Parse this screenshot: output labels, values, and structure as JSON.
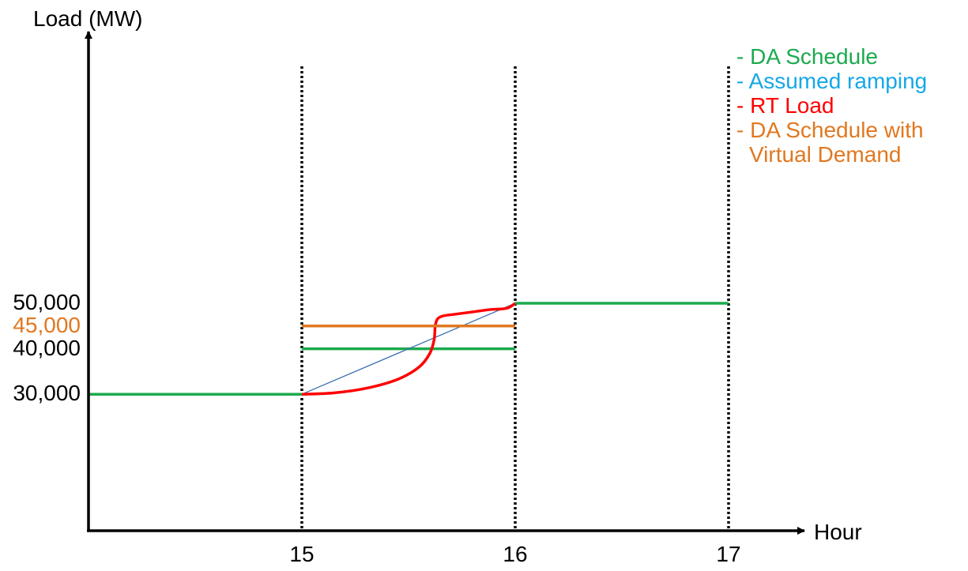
{
  "chart_data": {
    "type": "line",
    "title": "",
    "ylabel": "Load (MW)",
    "xlabel": "Hour",
    "xlim": [
      14,
      17.8
    ],
    "ylim": [
      0,
      64000
    ],
    "x_ticks": [
      {
        "value": 15,
        "label": "15"
      },
      {
        "value": 16,
        "label": "16"
      },
      {
        "value": 17,
        "label": "17"
      }
    ],
    "y_ticks": [
      {
        "value": 50000,
        "label": "50,000",
        "color": "#000000"
      },
      {
        "value": 45000,
        "label": "45,000",
        "color": "#E07820"
      },
      {
        "value": 40000,
        "label": "40,000",
        "color": "#000000"
      },
      {
        "value": 30000,
        "label": "30,000",
        "color": "#000000"
      }
    ],
    "vertical_lines": [
      15,
      16,
      17
    ],
    "series": [
      {
        "name": "DA Schedule",
        "color": "#1BAA4E",
        "segments": [
          [
            [
              14,
              30000
            ],
            [
              15,
              30000
            ]
          ],
          [
            [
              15,
              40000
            ],
            [
              16,
              40000
            ]
          ],
          [
            [
              16,
              50000
            ],
            [
              17,
              50000
            ]
          ]
        ]
      },
      {
        "name": "Assumed ramping",
        "color": "#3A6FB0",
        "segments": [
          [
            [
              15,
              30000
            ],
            [
              16,
              50000
            ]
          ]
        ]
      },
      {
        "name": "RT Load",
        "color": "#FF0000",
        "segments": [
          [
            [
              15.0,
              30000
            ],
            [
              15.15,
              30300
            ],
            [
              15.3,
              31300
            ],
            [
              15.45,
              33300
            ],
            [
              15.55,
              36000
            ],
            [
              15.6,
              39000
            ],
            [
              15.62,
              42000
            ],
            [
              15.625,
              45000
            ],
            [
              15.635,
              46500
            ],
            [
              15.66,
              47200
            ],
            [
              15.72,
              47600
            ],
            [
              15.8,
              48100
            ],
            [
              15.88,
              48600
            ],
            [
              15.96,
              48900
            ],
            [
              16.0,
              50000
            ]
          ]
        ]
      },
      {
        "name": "DA Schedule with Virtual Demand",
        "color": "#E07820",
        "segments": [
          [
            [
              15,
              45000
            ],
            [
              16,
              45000
            ]
          ]
        ]
      }
    ],
    "legend": {
      "position": "top-right",
      "items": [
        {
          "lines": [
            "- DA Schedule"
          ],
          "color": "#1BAA4E"
        },
        {
          "lines": [
            "- Assumed ramping"
          ],
          "color": "#16A7E6"
        },
        {
          "lines": [
            "- RT Load"
          ],
          "color": "#FF0000"
        },
        {
          "lines": [
            "- DA Schedule with",
            "Virtual Demand"
          ],
          "color": "#E07820"
        }
      ]
    }
  }
}
